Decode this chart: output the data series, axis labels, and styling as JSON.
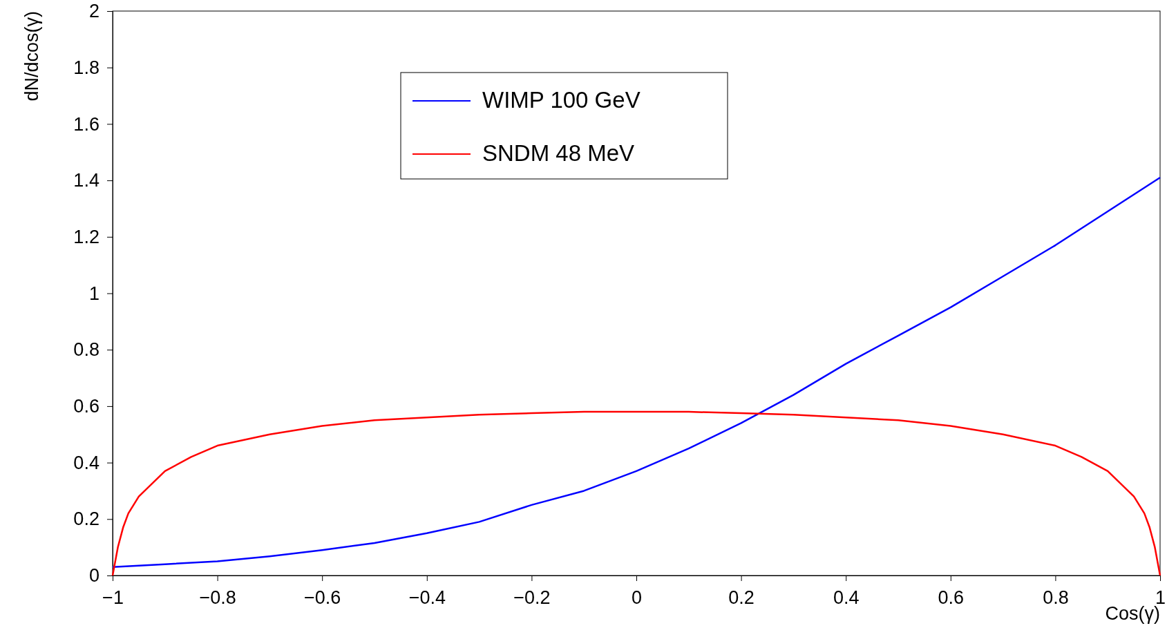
{
  "chart_data": {
    "type": "line",
    "xlabel": "Cos(γ)",
    "ylabel": "dN/dcos(γ)",
    "xlim": [
      -1,
      1
    ],
    "xticks": [
      -1,
      -0.8,
      -0.6,
      -0.4,
      -0.2,
      0,
      0.2,
      0.4,
      0.6,
      0.8,
      1
    ],
    "ylim": [
      0,
      2
    ],
    "yticks": [
      0,
      0.2,
      0.4,
      0.6,
      0.8,
      1,
      1.2,
      1.4,
      1.6,
      1.8,
      2
    ],
    "legend": "top",
    "grid": false,
    "series": [
      {
        "name": "WIMP 100 GeV",
        "color": "#0000ff",
        "x": [
          -1,
          -0.9,
          -0.8,
          -0.7,
          -0.6,
          -0.5,
          -0.4,
          -0.3,
          -0.2,
          -0.1,
          0,
          0.1,
          0.2,
          0.3,
          0.4,
          0.5,
          0.6,
          0.7,
          0.8,
          0.9,
          1
        ],
        "values": [
          0.03,
          0.04,
          0.05,
          0.068,
          0.09,
          0.115,
          0.15,
          0.19,
          0.25,
          0.3,
          0.37,
          0.45,
          0.54,
          0.64,
          0.75,
          0.85,
          0.95,
          1.06,
          1.17,
          1.29,
          1.41
        ]
      },
      {
        "name": "SNDM 48 MeV",
        "color": "#ff0000",
        "x": [
          -1,
          -0.99,
          -0.98,
          -0.97,
          -0.95,
          -0.9,
          -0.85,
          -0.8,
          -0.7,
          -0.6,
          -0.5,
          -0.4,
          -0.3,
          -0.2,
          -0.1,
          0,
          0.1,
          0.2,
          0.3,
          0.4,
          0.5,
          0.6,
          0.7,
          0.8,
          0.85,
          0.9,
          0.95,
          0.97,
          0.98,
          0.99,
          1
        ],
        "values": [
          0,
          0.1,
          0.17,
          0.22,
          0.28,
          0.37,
          0.42,
          0.46,
          0.5,
          0.53,
          0.55,
          0.56,
          0.57,
          0.575,
          0.58,
          0.58,
          0.58,
          0.575,
          0.57,
          0.56,
          0.55,
          0.53,
          0.5,
          0.46,
          0.42,
          0.37,
          0.28,
          0.22,
          0.17,
          0.1,
          0
        ]
      }
    ]
  }
}
